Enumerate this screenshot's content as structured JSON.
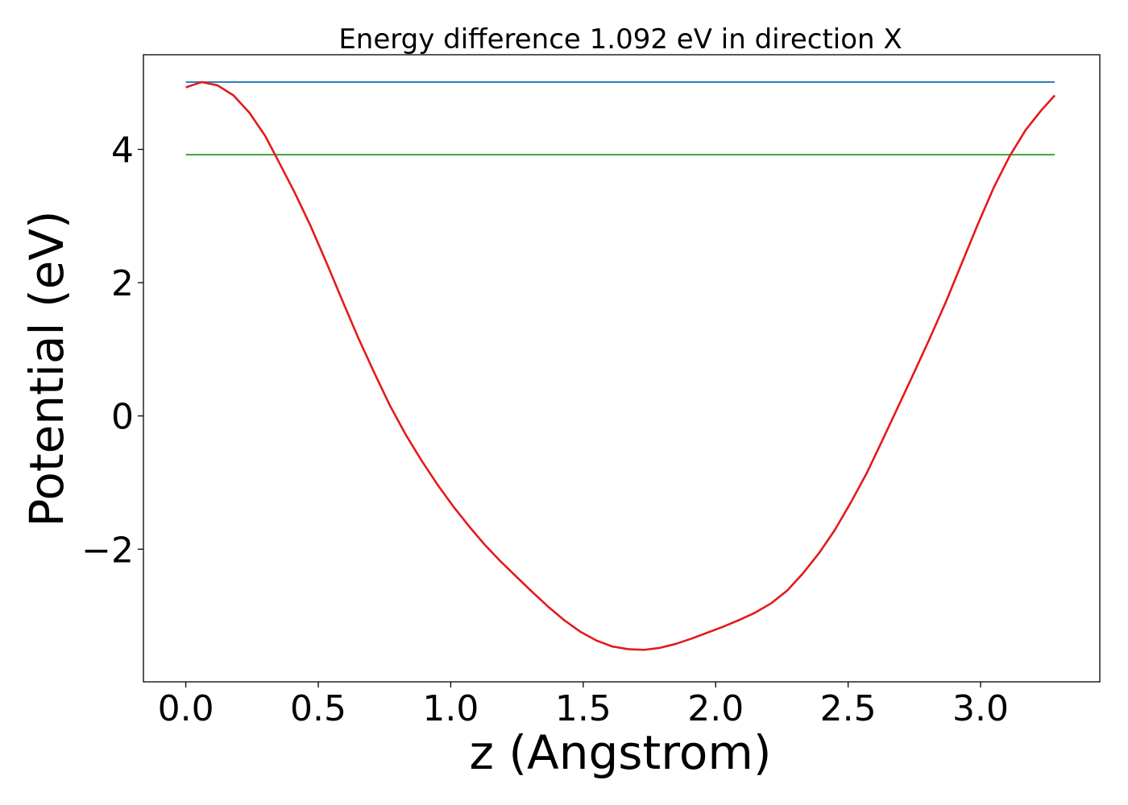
{
  "chart_data": {
    "type": "line",
    "title": "Energy difference 1.092 eV in direction X",
    "xlabel": "z (Angstrom)",
    "ylabel": "Potential (eV)",
    "xlim": [
      -0.16,
      3.45
    ],
    "ylim": [
      -3.99,
      5.42
    ],
    "xticks": [
      0.0,
      0.5,
      1.0,
      1.5,
      2.0,
      2.5,
      3.0
    ],
    "xtick_labels": [
      "0.0",
      "0.5",
      "1.0",
      "1.5",
      "2.0",
      "2.5",
      "3.0"
    ],
    "yticks": [
      -2,
      0,
      2,
      4
    ],
    "ytick_labels": [
      "−2",
      "0",
      "2",
      "4"
    ],
    "grid": false,
    "legend": "none",
    "series": [
      {
        "color": "#1f77b4",
        "x": [
          0.0,
          3.28
        ],
        "y": [
          5.01,
          5.01
        ]
      },
      {
        "color": "#2ca02c",
        "x": [
          0.0,
          3.28
        ],
        "y": [
          3.92,
          3.92
        ]
      },
      {
        "color": "#e31a1c",
        "x": [
          0.0,
          0.06,
          0.12,
          0.18,
          0.24,
          0.3,
          0.35,
          0.41,
          0.47,
          0.53,
          0.59,
          0.65,
          0.71,
          0.77,
          0.83,
          0.89,
          0.95,
          1.01,
          1.07,
          1.13,
          1.19,
          1.25,
          1.31,
          1.37,
          1.43,
          1.49,
          1.55,
          1.61,
          1.67,
          1.73,
          1.79,
          1.85,
          1.91,
          1.97,
          2.03,
          2.09,
          2.15,
          2.21,
          2.27,
          2.33,
          2.39,
          2.45,
          2.51,
          2.57,
          2.63,
          2.69,
          2.75,
          2.81,
          2.87,
          2.93,
          2.99,
          3.05,
          3.11,
          3.17,
          3.23,
          3.28
        ],
        "y": [
          4.93,
          5.01,
          4.96,
          4.81,
          4.55,
          4.2,
          3.82,
          3.36,
          2.86,
          2.31,
          1.74,
          1.18,
          0.66,
          0.16,
          -0.28,
          -0.67,
          -1.03,
          -1.36,
          -1.66,
          -1.94,
          -2.19,
          -2.42,
          -2.65,
          -2.87,
          -3.07,
          -3.24,
          -3.37,
          -3.46,
          -3.5,
          -3.51,
          -3.48,
          -3.42,
          -3.34,
          -3.25,
          -3.16,
          -3.06,
          -2.95,
          -2.81,
          -2.62,
          -2.36,
          -2.06,
          -1.71,
          -1.3,
          -0.86,
          -0.36,
          0.15,
          0.66,
          1.18,
          1.72,
          2.3,
          2.88,
          3.43,
          3.9,
          4.29,
          4.59,
          4.81
        ]
      }
    ]
  }
}
